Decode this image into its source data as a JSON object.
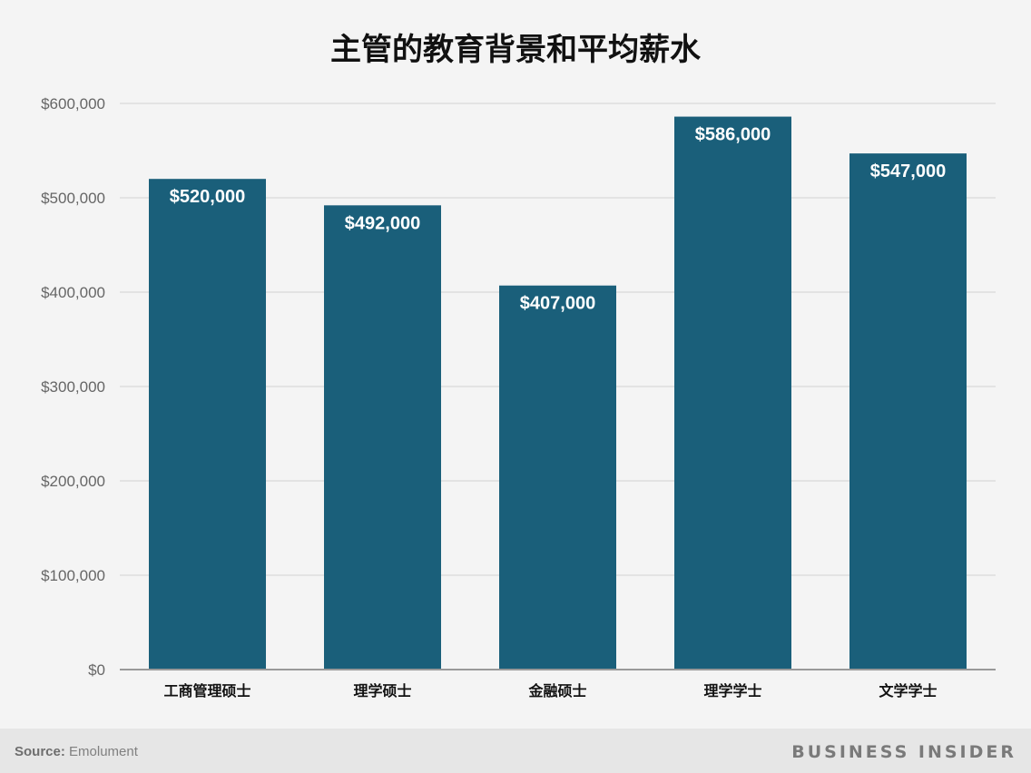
{
  "chart_data": {
    "type": "bar",
    "title": "主管的教育背景和平均薪水",
    "categories": [
      "工商管理硕士",
      "理学硕士",
      "金融硕士",
      "理学学士",
      "文学学士"
    ],
    "values": [
      520000,
      492000,
      407000,
      586000,
      547000
    ],
    "data_labels": [
      "$520,000",
      "$492,000",
      "$407,000",
      "$586,000",
      "$547,000"
    ],
    "ylim": [
      0,
      600000
    ],
    "yticks": [
      0,
      100000,
      200000,
      300000,
      400000,
      500000,
      600000
    ],
    "ytick_labels": [
      "$0",
      "$100,000",
      "$200,000",
      "$300,000",
      "$400,000",
      "$500,000",
      "$600,000"
    ],
    "xlabel": "",
    "ylabel": "",
    "grid": true,
    "bar_color": "#1a5f7a"
  },
  "footer": {
    "source_label": "Source:",
    "source_value": "Emolument",
    "brand": "BUSINESS INSIDER"
  }
}
